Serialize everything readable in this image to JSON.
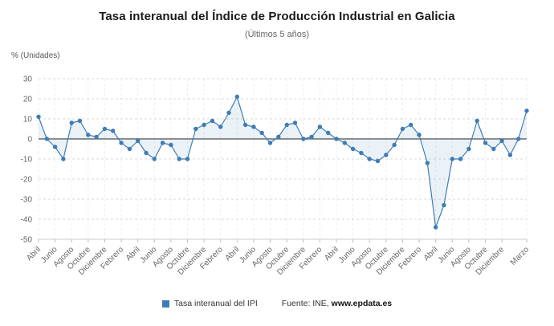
{
  "header": {
    "title": "Tasa interanual del Índice de Producción Industrial en Galicia",
    "subtitle": "(Últimos 5 años)"
  },
  "chart_data": {
    "type": "line",
    "title": "Tasa interanual del Índice de Producción Industrial en Galicia",
    "subtitle": "(Últimos 5 años)",
    "ylabel": "% (Unidades)",
    "ylim": [
      -50,
      30
    ],
    "yticks": [
      30,
      20,
      10,
      0,
      -10,
      -20,
      -30,
      -40,
      -50
    ],
    "grid": "dashed",
    "legend_position": "bottom",
    "x_labels": [
      "Abril",
      "",
      "Junio",
      "",
      "Agosto",
      "",
      "Octubre",
      "",
      "Diciembre",
      "",
      "Febrero",
      "",
      "Abril",
      "",
      "Junio",
      "",
      "Agosto",
      "",
      "Octubre",
      "",
      "Diciembre",
      "",
      "Febrero",
      "",
      "Abril",
      "",
      "Junio",
      "",
      "Agosto",
      "",
      "Octubre",
      "",
      "Diciembre",
      "",
      "Febrero",
      "",
      "Abril",
      "",
      "Junio",
      "",
      "Agosto",
      "",
      "Octubre",
      "",
      "Diciembre",
      "",
      "Febrero",
      "",
      "Abril",
      "",
      "Junio",
      "",
      "Agosto",
      "",
      "Octubre",
      "",
      "Diciembre",
      "",
      "",
      "Marzo"
    ],
    "series": [
      {
        "name": "Tasa interanual del IPI",
        "color": "#3e7cb5",
        "values": [
          11,
          0,
          -4,
          -10,
          8,
          9,
          2,
          1,
          5,
          4,
          -2,
          -5,
          -1,
          -7,
          -10,
          -2,
          -3,
          -10,
          -10,
          5,
          7,
          9,
          6,
          13,
          21,
          7,
          6,
          3,
          -2,
          1,
          7,
          8,
          0,
          1,
          6,
          3,
          0,
          -2,
          -5,
          -7,
          -10,
          -11,
          -8,
          -3,
          5,
          7,
          2,
          -12,
          -44,
          -33,
          -10,
          -10,
          -5,
          9,
          -2,
          -5,
          -1,
          -8,
          0,
          14
        ]
      }
    ],
    "line_color": "#3e7cb5",
    "area_fill": "rgba(62,124,181,0.10)",
    "grid_color": "#d9d9d9",
    "vgrid_color": "#ededed",
    "zero_line_color": "#4a4a4a"
  },
  "legend": {
    "label": "Tasa interanual del IPI",
    "marker_color": "#3e7cb5",
    "source_prefix": "Fuente: INE,",
    "source_site": "www.epdata.es"
  }
}
